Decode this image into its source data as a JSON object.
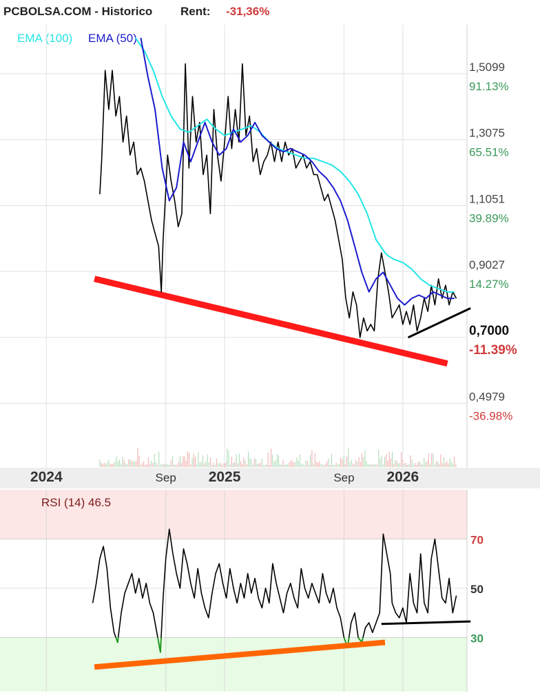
{
  "header": {
    "site": "PCBOLSA.COM - Historico",
    "rent_label": "Rent:",
    "rent_value": "-31,36%"
  },
  "legend": {
    "ema100": "EMA (100)",
    "ema50": "EMA (50)"
  },
  "colors": {
    "price": "#000000",
    "ema100": "#22e6e6",
    "ema50": "#1a1acc",
    "support_red": "#ff1a1a",
    "support_black": "#000000",
    "rsi_trend": "#ff6600",
    "rsi_oversold": "#1a9a1a",
    "positive": "#3a9a5a",
    "negative": "#d03a3a",
    "overbought_band": "#fde6e6",
    "oversold_band": "#e8fbe4"
  },
  "chart_data": [
    {
      "type": "line",
      "name": "price-panel",
      "y_ticks": [
        {
          "value": 1.5099,
          "label": "1,5099",
          "pct": "91.13%",
          "pct_sign": "pos"
        },
        {
          "value": 1.3075,
          "label": "1,3075",
          "pct": "65.51%",
          "pct_sign": "pos"
        },
        {
          "value": 1.1051,
          "label": "1,1051",
          "pct": "39.89%",
          "pct_sign": "pos"
        },
        {
          "value": 0.9027,
          "label": "0,9027",
          "pct": "14.27%",
          "pct_sign": "pos"
        },
        {
          "value": 0.7,
          "label": "0,7000",
          "pct": "-11.39%",
          "pct_sign": "neg",
          "bold": true
        },
        {
          "value": 0.4979,
          "label": "0,4979",
          "pct": "-36.98%",
          "pct_sign": "neg"
        }
      ],
      "x_ticks": [
        {
          "t": 2024.0,
          "label": "2024",
          "major": true
        },
        {
          "t": 2024.67,
          "label": "Sep",
          "major": false
        },
        {
          "t": 2025.0,
          "label": "2025",
          "major": true
        },
        {
          "t": 2025.67,
          "label": "Sep",
          "major": false
        },
        {
          "t": 2026.0,
          "label": "2026",
          "major": true
        }
      ],
      "xlim": [
        2023.74,
        2026.36
      ],
      "ylim": [
        0.3,
        1.66
      ],
      "series": [
        {
          "role": "price",
          "x": [
            2024.3,
            2024.31,
            2024.33,
            2024.35,
            2024.37,
            2024.39,
            2024.41,
            2024.43,
            2024.45,
            2024.47,
            2024.49,
            2024.51,
            2024.53,
            2024.55,
            2024.57,
            2024.59,
            2024.61,
            2024.63,
            2024.645,
            2024.655,
            2024.665,
            2024.68,
            2024.7,
            2024.72,
            2024.74,
            2024.76,
            2024.78,
            2024.8,
            2024.82,
            2024.84,
            2024.86,
            2024.88,
            2024.9,
            2024.92,
            2024.94,
            2024.96,
            2024.98,
            2025.0,
            2025.02,
            2025.04,
            2025.06,
            2025.08,
            2025.1,
            2025.12,
            2025.14,
            2025.16,
            2025.18,
            2025.2,
            2025.22,
            2025.24,
            2025.26,
            2025.28,
            2025.3,
            2025.32,
            2025.34,
            2025.36,
            2025.38,
            2025.4,
            2025.42,
            2025.44,
            2025.46,
            2025.48,
            2025.5,
            2025.52,
            2025.54,
            2025.56,
            2025.58,
            2025.6,
            2025.62,
            2025.64,
            2025.66,
            2025.68,
            2025.7,
            2025.72,
            2025.74,
            2025.76,
            2025.78,
            2025.8,
            2025.82,
            2025.84,
            2025.86,
            2025.88,
            2025.9,
            2025.92,
            2025.93,
            2025.94,
            2025.96,
            2025.98,
            2026.0,
            2026.02,
            2026.04,
            2026.06,
            2026.08,
            2026.1,
            2026.12,
            2026.14,
            2026.16,
            2026.18,
            2026.2,
            2026.22,
            2026.24,
            2026.26,
            2026.28,
            2026.3
          ],
          "y": [
            1.14,
            1.24,
            1.52,
            1.4,
            1.52,
            1.38,
            1.44,
            1.3,
            1.38,
            1.26,
            1.3,
            1.2,
            1.22,
            1.18,
            1.12,
            1.06,
            1.02,
            0.98,
            0.84,
            1.0,
            1.1,
            1.26,
            1.18,
            1.12,
            1.04,
            1.08,
            1.54,
            1.22,
            1.44,
            1.3,
            1.36,
            1.2,
            1.26,
            1.08,
            1.4,
            1.26,
            1.18,
            1.3,
            1.44,
            1.28,
            1.4,
            1.3,
            1.54,
            1.32,
            1.38,
            1.24,
            1.28,
            1.2,
            1.24,
            1.26,
            1.3,
            1.24,
            1.3,
            1.24,
            1.3,
            1.26,
            1.28,
            1.22,
            1.24,
            1.26,
            1.22,
            1.24,
            1.2,
            1.2,
            1.16,
            1.12,
            1.14,
            1.1,
            1.06,
            1.0,
            0.94,
            0.82,
            0.76,
            0.84,
            0.8,
            0.7,
            0.76,
            0.72,
            0.74,
            0.72,
            0.88,
            0.96,
            0.9,
            0.84,
            0.8,
            0.76,
            0.78,
            0.8,
            0.74,
            0.78,
            0.74,
            0.8,
            0.72,
            0.76,
            0.82,
            0.78,
            0.86,
            0.8,
            0.88,
            0.82,
            0.86,
            0.8,
            0.84,
            0.82
          ]
        },
        {
          "role": "ema100",
          "x": [
            2024.5,
            2024.55,
            2024.6,
            2024.65,
            2024.7,
            2024.75,
            2024.8,
            2024.85,
            2024.9,
            2024.95,
            2025.0,
            2025.05,
            2025.1,
            2025.15,
            2025.2,
            2025.25,
            2025.3,
            2025.35,
            2025.4,
            2025.45,
            2025.5,
            2025.55,
            2025.6,
            2025.65,
            2025.7,
            2025.75,
            2025.8,
            2025.85,
            2025.9,
            2025.92,
            2025.95,
            2026.0,
            2026.05,
            2026.1,
            2026.15,
            2026.2,
            2026.25,
            2026.29
          ],
          "y": [
            1.62,
            1.58,
            1.52,
            1.44,
            1.38,
            1.34,
            1.33,
            1.35,
            1.37,
            1.34,
            1.32,
            1.33,
            1.34,
            1.35,
            1.33,
            1.3,
            1.28,
            1.27,
            1.26,
            1.25,
            1.25,
            1.24,
            1.23,
            1.21,
            1.18,
            1.14,
            1.08,
            1.0,
            0.96,
            0.95,
            0.94,
            0.93,
            0.91,
            0.88,
            0.86,
            0.85,
            0.84,
            0.84
          ]
        },
        {
          "role": "ema50",
          "x": [
            2024.53,
            2024.57,
            2024.61,
            2024.65,
            2024.69,
            2024.73,
            2024.77,
            2024.81,
            2024.85,
            2024.89,
            2024.93,
            2024.97,
            2025.01,
            2025.05,
            2025.09,
            2025.13,
            2025.17,
            2025.21,
            2025.25,
            2025.29,
            2025.33,
            2025.37,
            2025.41,
            2025.45,
            2025.49,
            2025.53,
            2025.57,
            2025.61,
            2025.65,
            2025.69,
            2025.73,
            2025.77,
            2025.81,
            2025.85,
            2025.89,
            2025.93,
            2025.97,
            2026.01,
            2026.05,
            2026.09,
            2026.13,
            2026.17,
            2026.21,
            2026.25,
            2026.29
          ],
          "y": [
            1.62,
            1.5,
            1.4,
            1.22,
            1.12,
            1.16,
            1.3,
            1.24,
            1.3,
            1.36,
            1.3,
            1.26,
            1.28,
            1.34,
            1.3,
            1.32,
            1.36,
            1.32,
            1.3,
            1.28,
            1.27,
            1.28,
            1.27,
            1.26,
            1.24,
            1.21,
            1.19,
            1.16,
            1.12,
            1.06,
            0.98,
            0.9,
            0.84,
            0.88,
            0.9,
            0.86,
            0.82,
            0.8,
            0.82,
            0.83,
            0.82,
            0.84,
            0.83,
            0.82,
            0.82
          ]
        }
      ],
      "trendlines": [
        {
          "role": "support_red",
          "x": [
            2024.27,
            2026.25
          ],
          "y": [
            0.88,
            0.62
          ]
        },
        {
          "role": "support_black",
          "x": [
            2026.03,
            2026.38
          ],
          "y": [
            0.7,
            0.79
          ]
        }
      ]
    },
    {
      "type": "line",
      "name": "rsi-panel",
      "title": "RSI (14) 46.5",
      "y_ticks": [
        {
          "value": 70,
          "label": "70",
          "pct_sign": "neg"
        },
        {
          "value": 50,
          "label": "50",
          "pct_sign": "none"
        },
        {
          "value": 30,
          "label": "30",
          "pct_sign": "pos"
        }
      ],
      "ylim": [
        8,
        90
      ],
      "xlim": [
        2023.74,
        2026.36
      ],
      "series": [
        {
          "role": "rsi",
          "x": [
            2024.26,
            2024.28,
            2024.3,
            2024.32,
            2024.34,
            2024.36,
            2024.38,
            2024.4,
            2024.42,
            2024.44,
            2024.46,
            2024.48,
            2024.5,
            2024.52,
            2024.54,
            2024.56,
            2024.58,
            2024.6,
            2024.62,
            2024.64,
            2024.655,
            2024.67,
            2024.69,
            2024.71,
            2024.73,
            2024.75,
            2024.77,
            2024.79,
            2024.81,
            2024.83,
            2024.85,
            2024.87,
            2024.89,
            2024.91,
            2024.93,
            2024.95,
            2024.97,
            2024.99,
            2025.01,
            2025.03,
            2025.05,
            2025.07,
            2025.09,
            2025.11,
            2025.13,
            2025.15,
            2025.17,
            2025.19,
            2025.21,
            2025.23,
            2025.25,
            2025.27,
            2025.29,
            2025.31,
            2025.33,
            2025.35,
            2025.37,
            2025.39,
            2025.41,
            2025.43,
            2025.45,
            2025.47,
            2025.49,
            2025.51,
            2025.53,
            2025.55,
            2025.57,
            2025.59,
            2025.61,
            2025.63,
            2025.65,
            2025.67,
            2025.69,
            2025.71,
            2025.73,
            2025.75,
            2025.77,
            2025.79,
            2025.81,
            2025.83,
            2025.85,
            2025.87,
            2025.89,
            2025.91,
            2025.93,
            2025.94,
            2025.96,
            2025.98,
            2026.0,
            2026.02,
            2026.04,
            2026.06,
            2026.08,
            2026.1,
            2026.12,
            2026.14,
            2026.16,
            2026.18,
            2026.2,
            2026.22,
            2026.24,
            2026.26,
            2026.28,
            2026.3
          ],
          "y": [
            44,
            52,
            62,
            67,
            58,
            42,
            32,
            28,
            40,
            48,
            52,
            56,
            48,
            54,
            46,
            52,
            44,
            40,
            32,
            24,
            46,
            62,
            74,
            64,
            56,
            50,
            66,
            60,
            52,
            46,
            58,
            48,
            42,
            38,
            48,
            56,
            60,
            52,
            46,
            58,
            50,
            44,
            52,
            46,
            56,
            48,
            54,
            46,
            42,
            50,
            44,
            60,
            52,
            46,
            40,
            48,
            52,
            46,
            42,
            58,
            50,
            46,
            52,
            48,
            44,
            56,
            48,
            44,
            50,
            42,
            38,
            30,
            26,
            36,
            40,
            30,
            28,
            34,
            36,
            32,
            36,
            40,
            72,
            64,
            56,
            44,
            40,
            38,
            42,
            36,
            56,
            44,
            40,
            64,
            44,
            40,
            62,
            70,
            58,
            46,
            44,
            54,
            40,
            47
          ]
        }
      ],
      "trendlines": [
        {
          "role": "rsi_trend",
          "x": [
            2024.27,
            2025.9
          ],
          "y": [
            18,
            28
          ]
        },
        {
          "role": "support_black",
          "x": [
            2025.88,
            2026.38
          ],
          "y": [
            35.5,
            36.5
          ]
        }
      ]
    }
  ]
}
